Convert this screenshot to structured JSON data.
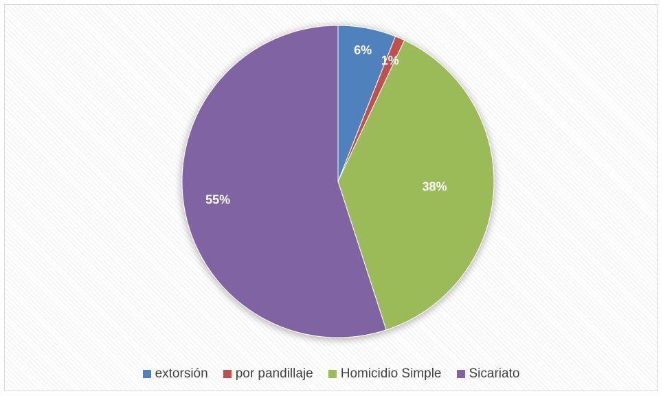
{
  "chart_data": {
    "type": "pie",
    "categories": [
      "extorsión",
      "por pandillaje",
      "Homicidio Simple",
      "Sicariato"
    ],
    "values": [
      6,
      1,
      38,
      55
    ],
    "data_labels": [
      "6%",
      "1%",
      "38%",
      "55%"
    ],
    "colors": [
      "#4f81bd",
      "#c0504d",
      "#9bbb59",
      "#8064a2"
    ],
    "start_angle": "12 o'clock",
    "direction": "clockwise",
    "legend_position": "bottom"
  }
}
